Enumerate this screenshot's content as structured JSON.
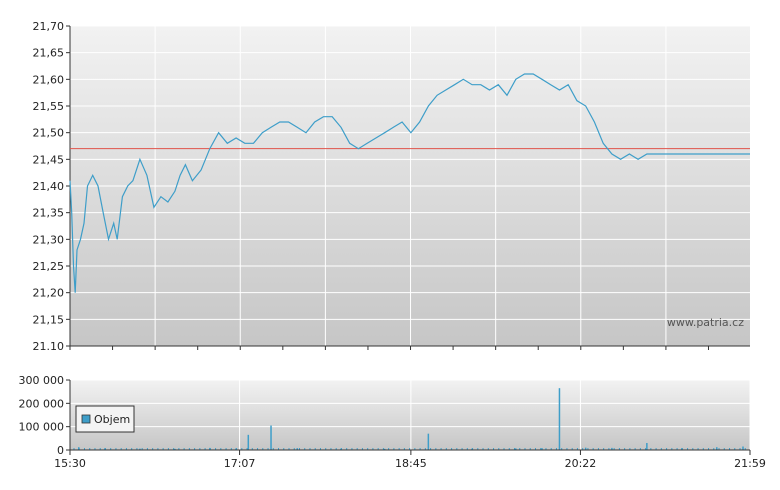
{
  "watermark": "www.patria.cz",
  "colors": {
    "price_line": "#3e9ec9",
    "reference_line": "#e0534a",
    "volume_bar": "#3e9ec9",
    "grid": "#ffffff",
    "plot_top": "#f2f2f2",
    "plot_bottom": "#c6c6c6",
    "axis": "#333333"
  },
  "chart_data": [
    {
      "type": "line",
      "title": "",
      "xlabel": "",
      "ylabel": "",
      "x_ticks": [
        "15:30",
        "17:07",
        "18:45",
        "20:22",
        "21:59"
      ],
      "y_ticks": [
        "21,70",
        "21,65",
        "21,60",
        "21,55",
        "21,50",
        "21,45",
        "21,40",
        "21,35",
        "21,30",
        "21,25",
        "21,20",
        "21,15",
        "21.10"
      ],
      "ylim": [
        21.1,
        21.7
      ],
      "xlim": [
        "15:30",
        "21:59"
      ],
      "grid": true,
      "reference_line": 21.47,
      "series": [
        {
          "x": [
            "15:30",
            "15:31",
            "15:32",
            "15:33",
            "15:34",
            "15:36",
            "15:38",
            "15:40",
            "15:43",
            "15:46",
            "15:49",
            "15:52",
            "15:55",
            "15:57",
            "16:00",
            "16:03",
            "16:06",
            "16:10",
            "16:14",
            "16:18",
            "16:22",
            "16:26",
            "16:30",
            "16:33",
            "16:36",
            "16:40",
            "16:45",
            "16:50",
            "16:55",
            "17:00",
            "17:05",
            "17:10",
            "17:15",
            "17:20",
            "17:25",
            "17:30",
            "17:35",
            "17:40",
            "17:45",
            "17:50",
            "17:55",
            "18:00",
            "18:05",
            "18:10",
            "18:15",
            "18:20",
            "18:25",
            "18:30",
            "18:35",
            "18:40",
            "18:45",
            "18:50",
            "18:55",
            "19:00",
            "19:05",
            "19:10",
            "19:15",
            "19:20",
            "19:25",
            "19:30",
            "19:35",
            "19:40",
            "19:45",
            "19:50",
            "19:55",
            "20:00",
            "20:05",
            "20:10",
            "20:15",
            "20:20",
            "20:25",
            "20:30",
            "20:35",
            "20:40",
            "20:45",
            "20:50",
            "20:55",
            "21:00",
            "21:05",
            "21:10",
            "21:15",
            "21:20",
            "21:25",
            "21:30",
            "21:35",
            "21:40",
            "21:45",
            "21:50",
            "21:55",
            "21:59"
          ],
          "values": [
            21.41,
            21.35,
            21.25,
            21.2,
            21.28,
            21.3,
            21.33,
            21.4,
            21.42,
            21.4,
            21.35,
            21.3,
            21.33,
            21.3,
            21.38,
            21.4,
            21.41,
            21.45,
            21.42,
            21.36,
            21.38,
            21.37,
            21.39,
            21.42,
            21.44,
            21.41,
            21.43,
            21.47,
            21.5,
            21.48,
            21.49,
            21.48,
            21.48,
            21.5,
            21.51,
            21.52,
            21.52,
            21.51,
            21.5,
            21.52,
            21.53,
            21.53,
            21.51,
            21.48,
            21.47,
            21.48,
            21.49,
            21.5,
            21.51,
            21.52,
            21.5,
            21.52,
            21.55,
            21.57,
            21.58,
            21.59,
            21.6,
            21.59,
            21.59,
            21.58,
            21.59,
            21.57,
            21.6,
            21.61,
            21.61,
            21.6,
            21.59,
            21.58,
            21.59,
            21.56,
            21.55,
            21.52,
            21.48,
            21.46,
            21.45,
            21.46,
            21.45,
            21.46,
            21.46,
            21.46,
            21.46,
            21.46,
            21.46,
            21.46,
            21.46,
            21.46,
            21.46,
            21.46,
            21.46,
            21.46
          ]
        }
      ]
    },
    {
      "type": "bar",
      "title": "",
      "xlabel": "",
      "ylabel": "",
      "y_ticks": [
        "300 000",
        "200 000",
        "100 000",
        "0"
      ],
      "ylim": [
        0,
        300000
      ],
      "grid": true,
      "legend": {
        "entries": [
          "Objem"
        ],
        "placement": "left"
      },
      "series": [
        {
          "name": "Objem",
          "x": [
            "15:35",
            "15:50",
            "16:10",
            "16:30",
            "16:50",
            "17:05",
            "17:12",
            "17:25",
            "17:40",
            "18:05",
            "18:30",
            "18:55",
            "19:20",
            "19:45",
            "20:00",
            "20:10",
            "20:25",
            "20:40",
            "21:00",
            "21:20",
            "21:40",
            "21:55"
          ],
          "values": [
            12000,
            8000,
            6000,
            5000,
            9000,
            7000,
            65000,
            105000,
            8000,
            6000,
            5000,
            70000,
            6000,
            7000,
            8000,
            265000,
            10000,
            9000,
            30000,
            8000,
            12000,
            15000
          ]
        }
      ]
    }
  ]
}
